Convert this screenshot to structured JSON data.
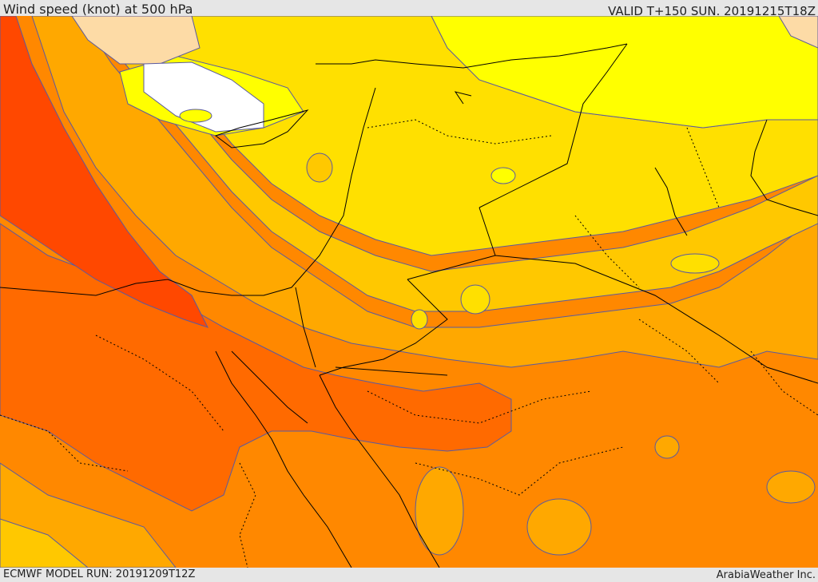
{
  "header": {
    "title": "Wind speed (knot) at 500 hPa",
    "valid": "VALID T+150 SUN. 20191215T18Z"
  },
  "footer": {
    "model_run": "ECMWF MODEL RUN: 20191209T12Z",
    "credit": "ArabiaWeather Inc."
  },
  "colors": {
    "very_low": "#ffffff",
    "low": "#ffff00",
    "peach": "#fddba6",
    "moderate_low": "#ffe000",
    "moderate": "#ffc800",
    "moderate_high": "#ffa800",
    "high": "#ff8800",
    "very_high": "#ff6a00",
    "extreme": "#ff4800",
    "contour": "#5a5aa0",
    "border": "#000000"
  }
}
